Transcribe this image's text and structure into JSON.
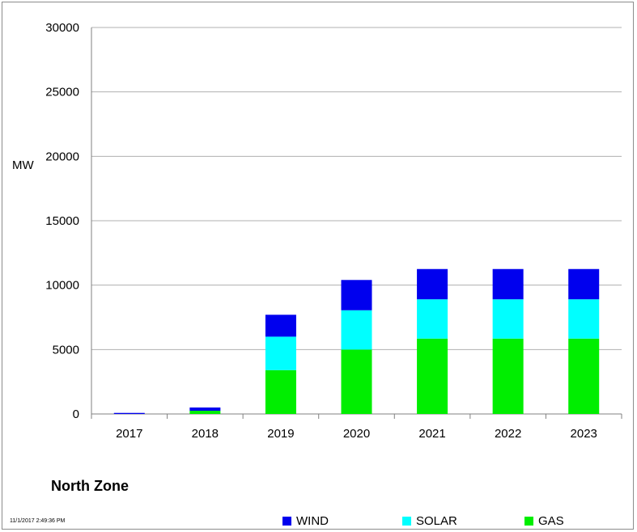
{
  "chart_data": {
    "type": "bar",
    "stacked": true,
    "categories": [
      "2017",
      "2018",
      "2019",
      "2020",
      "2021",
      "2022",
      "2023"
    ],
    "series": [
      {
        "name": "GAS",
        "color": "#00ee00",
        "values": [
          0,
          250,
          3400,
          5000,
          5850,
          5850,
          5850
        ]
      },
      {
        "name": "SOLAR",
        "color": "#00ffff",
        "values": [
          0,
          0,
          2600,
          3050,
          3050,
          3050,
          3050
        ]
      },
      {
        "name": "WIND",
        "color": "#0000ee",
        "values": [
          80,
          250,
          1700,
          2350,
          2350,
          2350,
          2350
        ]
      }
    ],
    "title": "North Zone",
    "xlabel": "",
    "ylabel": "MW",
    "ylim": [
      0,
      30000
    ],
    "yticks": [
      0,
      5000,
      10000,
      15000,
      20000,
      25000,
      30000
    ],
    "grid": true,
    "legend_position": "bottom"
  },
  "timestamp": "11/1/2017 2:49:36 PM"
}
